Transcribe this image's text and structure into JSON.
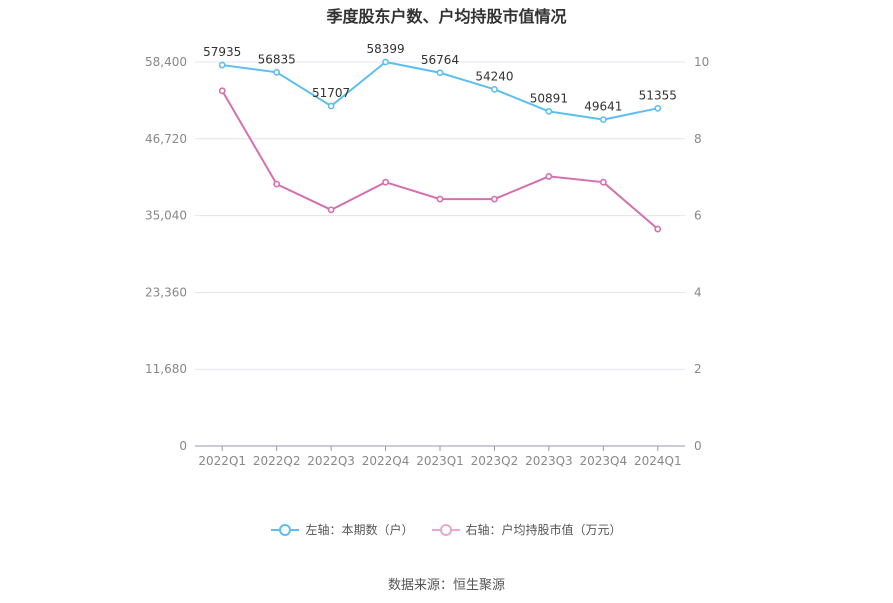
{
  "chart_data": {
    "type": "line",
    "title": "季度股东户数、户均持股市值情况",
    "categories": [
      "2022Q1",
      "2022Q2",
      "2022Q3",
      "2022Q4",
      "2023Q1",
      "2023Q2",
      "2023Q3",
      "2023Q4",
      "2024Q1"
    ],
    "left_axis": {
      "ylim": [
        0,
        58400
      ],
      "ticks": [
        "0",
        "11,680",
        "23,360",
        "35,040",
        "46,720",
        "58,400"
      ]
    },
    "right_axis": {
      "ylim": [
        0,
        10
      ],
      "ticks": [
        "0",
        "2",
        "4",
        "6",
        "8",
        "10"
      ]
    },
    "series": [
      {
        "name": "左轴：本期数（户）",
        "axis": "left",
        "color": "#5bbfef",
        "values": [
          57935,
          56835,
          51707,
          58399,
          56764,
          54240,
          50891,
          49641,
          51355
        ],
        "data_labels": [
          "57935",
          "56835",
          "51707",
          "58399",
          "56764",
          "54240",
          "50891",
          "49641",
          "51355"
        ]
      },
      {
        "name": "右轴：户均持股市值（万元）",
        "axis": "right",
        "color": "#d470b0",
        "values": [
          9.25,
          6.82,
          6.15,
          6.87,
          6.43,
          6.43,
          7.02,
          6.87,
          5.65
        ]
      }
    ],
    "grid": true,
    "legend_position": "bottom"
  },
  "footer": {
    "source": "数据来源：恒生聚源"
  }
}
